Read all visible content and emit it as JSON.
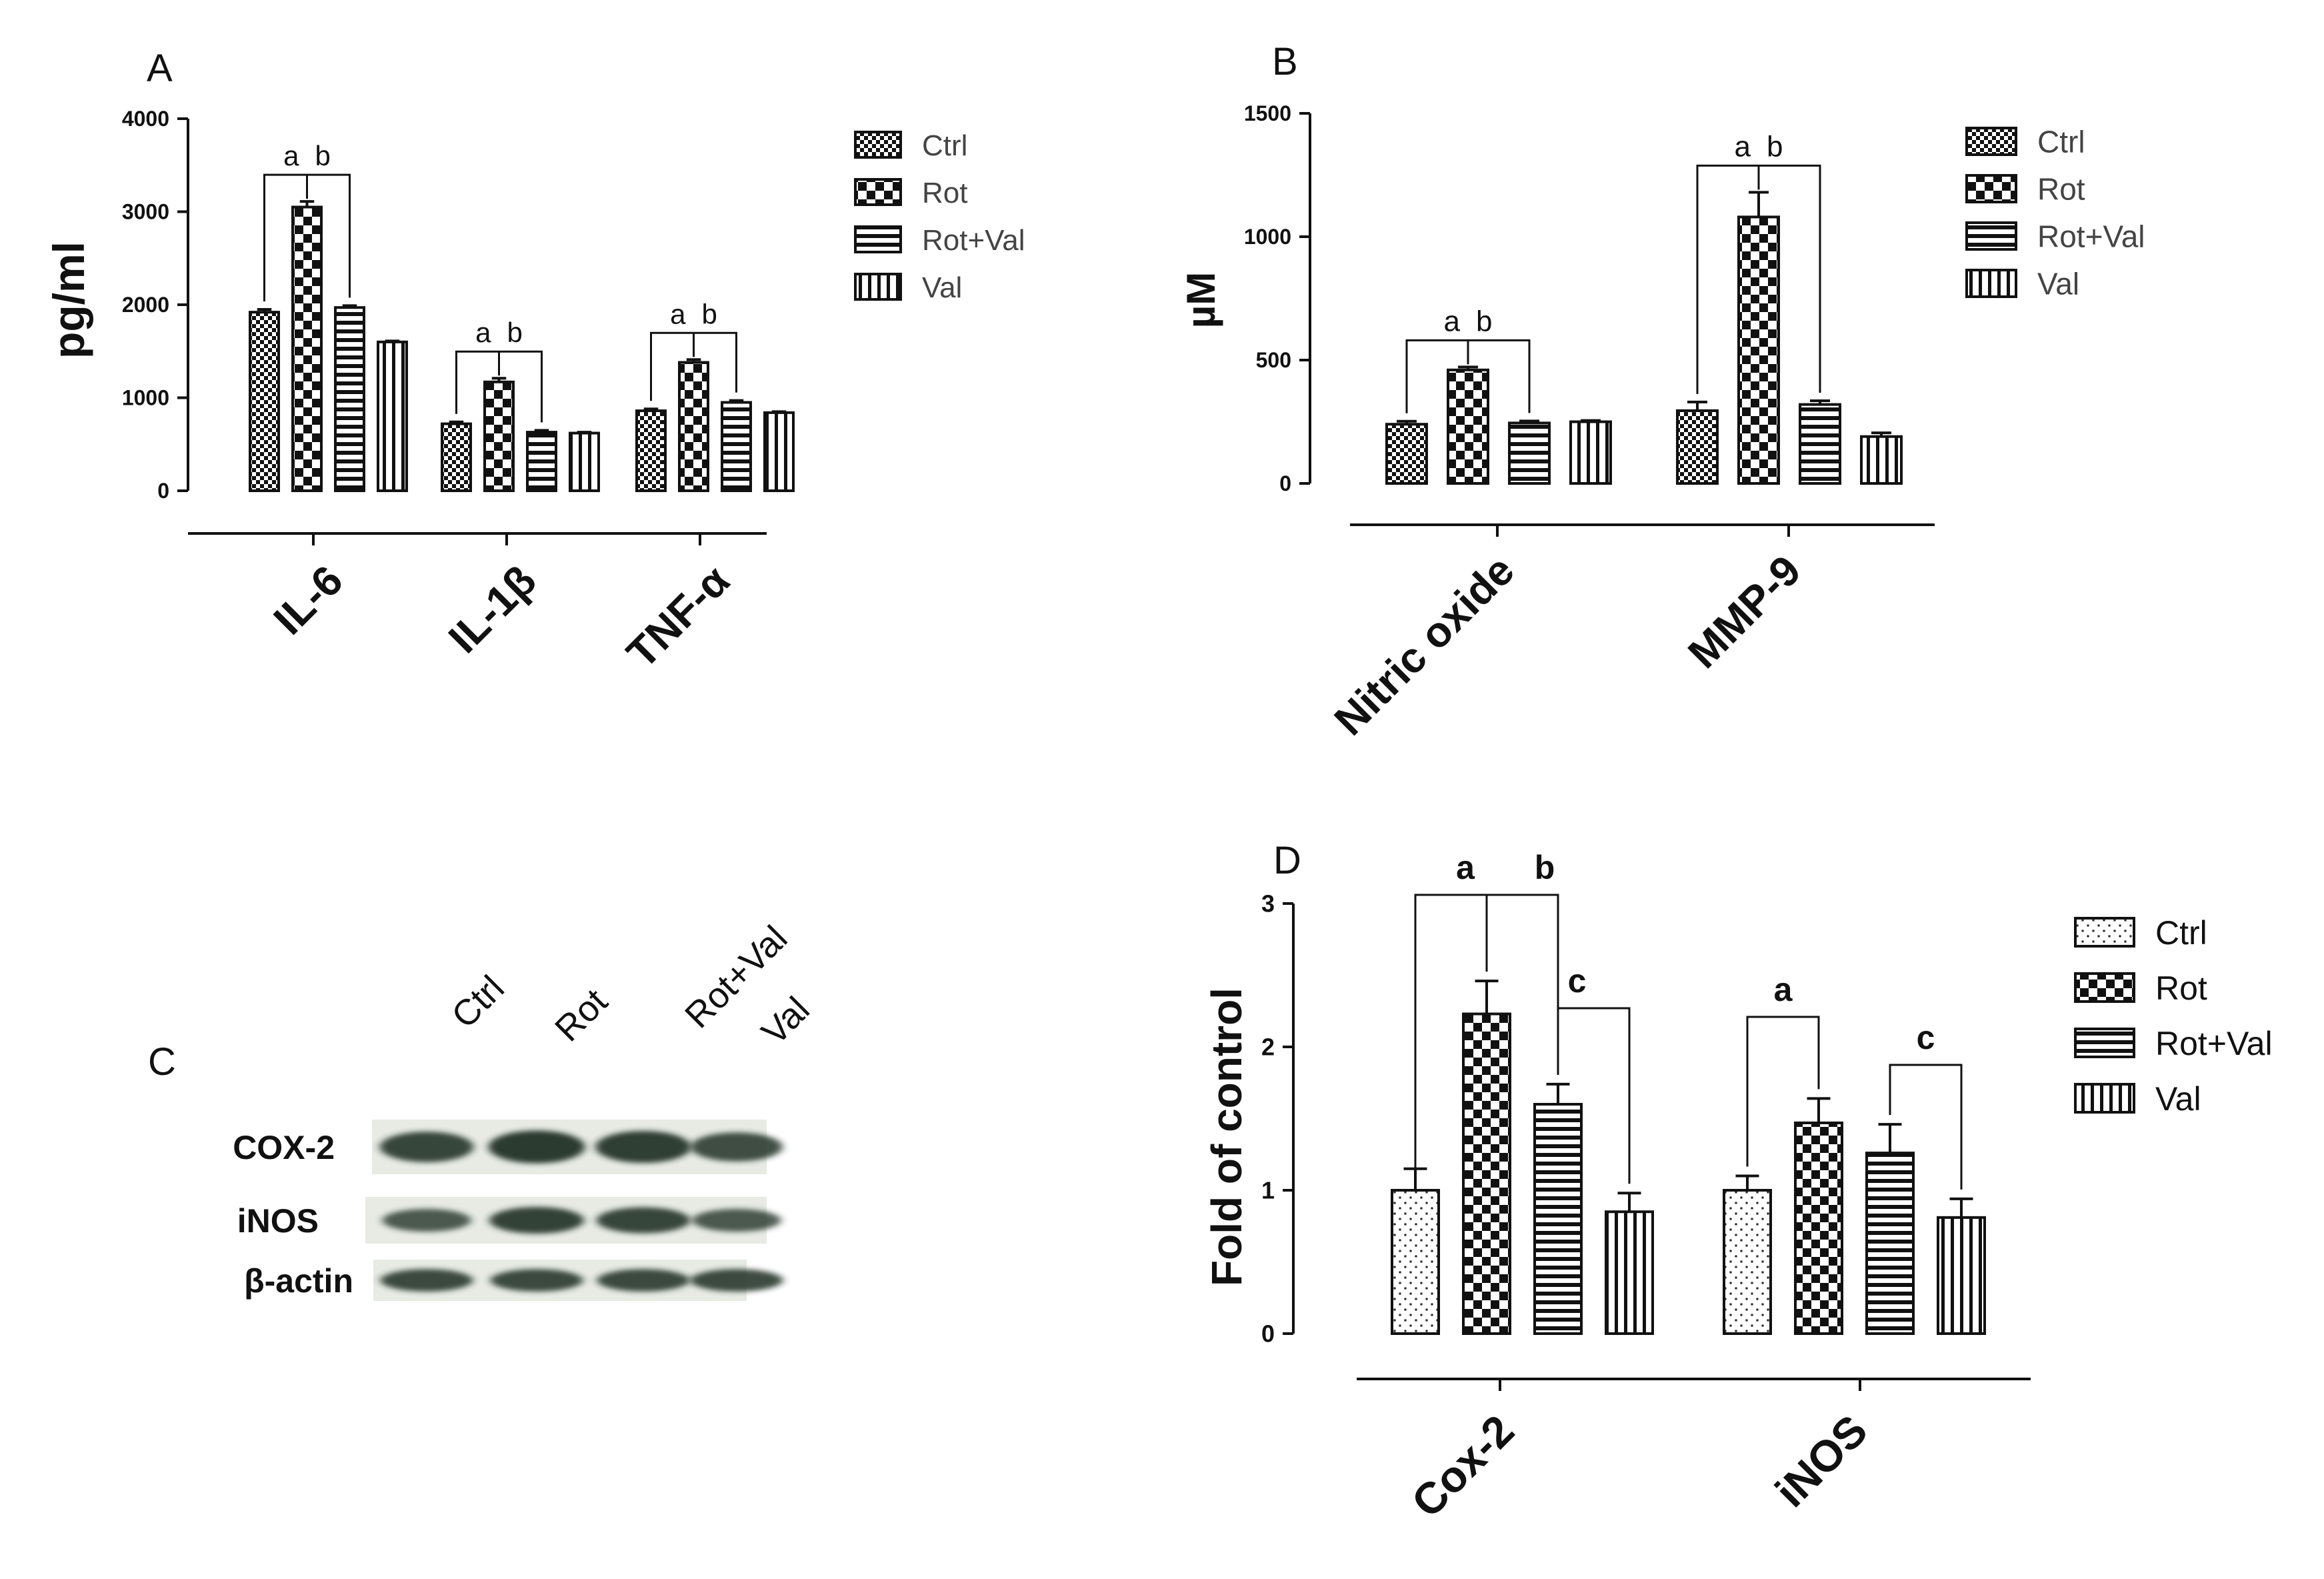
{
  "figure": {
    "panels": [
      "A",
      "B",
      "C",
      "D"
    ]
  },
  "colors": {
    "ink": "#111111",
    "legend_text": "#444444",
    "blot_bg": "#e7ebe4",
    "blot_band": "#243326"
  },
  "chart_data": [
    {
      "id": "A",
      "type": "bar",
      "panel_label": "A",
      "ylabel": "pg/ml",
      "xlabel": "",
      "ylim": [
        0,
        4000
      ],
      "yticks": [
        "0",
        "1000",
        "2000",
        "3000",
        "4000"
      ],
      "categories": [
        "IL-6",
        "IL-1β",
        "TNF-α"
      ],
      "series": [
        {
          "name": "Ctrl",
          "values": [
            1920,
            720,
            860
          ],
          "errors": [
            30,
            20,
            20
          ]
        },
        {
          "name": "Rot",
          "values": [
            3050,
            1170,
            1380
          ],
          "errors": [
            60,
            40,
            30
          ]
        },
        {
          "name": "Rot+Val",
          "values": [
            1970,
            630,
            950
          ],
          "errors": [
            20,
            20,
            20
          ]
        },
        {
          "name": "Val",
          "values": [
            1600,
            620,
            840
          ],
          "errors": [
            10,
            10,
            10
          ]
        }
      ],
      "annotations": [
        {
          "category": "IL-6",
          "labels": [
            "a",
            "b"
          ]
        },
        {
          "category": "IL-1β",
          "labels": [
            "a",
            "b"
          ]
        },
        {
          "category": "TNF-α",
          "labels": [
            "a",
            "b"
          ]
        }
      ],
      "legend": [
        "Ctrl",
        "Rot",
        "Rot+Val",
        "Val"
      ]
    },
    {
      "id": "B",
      "type": "bar",
      "panel_label": "B",
      "ylabel": "µM",
      "xlabel": "",
      "ylim": [
        0,
        1500
      ],
      "yticks": [
        "0",
        "500",
        "1000",
        "1500"
      ],
      "categories": [
        "Nitric oxide",
        "MMP-9"
      ],
      "series": [
        {
          "name": "Ctrl",
          "values": [
            240,
            295
          ],
          "errors": [
            12,
            35
          ]
        },
        {
          "name": "Rot",
          "values": [
            460,
            1080
          ],
          "errors": [
            12,
            100
          ]
        },
        {
          "name": "Rot+Val",
          "values": [
            245,
            320
          ],
          "errors": [
            8,
            15
          ]
        },
        {
          "name": "Val",
          "values": [
            250,
            190
          ],
          "errors": [
            5,
            15
          ]
        }
      ],
      "annotations": [
        {
          "category": "Nitric oxide",
          "labels": [
            "a",
            "b"
          ]
        },
        {
          "category": "MMP-9",
          "labels": [
            "a",
            "b"
          ]
        }
      ],
      "legend": [
        "Ctrl",
        "Rot",
        "Rot+Val",
        "Val"
      ]
    },
    {
      "id": "D",
      "type": "bar",
      "panel_label": "D",
      "ylabel": "Fold of control",
      "xlabel": "",
      "ylim": [
        0,
        3
      ],
      "yticks": [
        "0",
        "1",
        "2",
        "3"
      ],
      "categories": [
        "Cox-2",
        "iNOS"
      ],
      "series": [
        {
          "name": "Ctrl",
          "values": [
            1.0,
            1.0
          ],
          "errors": [
            0.15,
            0.1
          ]
        },
        {
          "name": "Rot",
          "values": [
            2.23,
            1.47
          ],
          "errors": [
            0.23,
            0.17
          ]
        },
        {
          "name": "Rot+Val",
          "values": [
            1.6,
            1.26
          ],
          "errors": [
            0.14,
            0.2
          ]
        },
        {
          "name": "Val",
          "values": [
            0.85,
            0.81
          ],
          "errors": [
            0.13,
            0.13
          ]
        }
      ],
      "annotations": [
        {
          "category": "Cox-2",
          "labels": [
            "a",
            "b",
            "c"
          ]
        },
        {
          "category": "iNOS",
          "labels": [
            "a",
            "c"
          ]
        }
      ],
      "legend": [
        "Ctrl",
        "Rot",
        "Rot+Val",
        "Val"
      ]
    }
  ],
  "blot": {
    "panel_label": "C",
    "lanes": [
      "Ctrl",
      "Rot",
      "Rot+Val",
      "Val"
    ],
    "rows": [
      {
        "name": "COX-2",
        "intensity": [
          0.85,
          1.0,
          0.95,
          0.75
        ]
      },
      {
        "name": "iNOS",
        "intensity": [
          0.6,
          0.9,
          0.85,
          0.6
        ]
      },
      {
        "name": "β-actin",
        "intensity": [
          0.8,
          0.8,
          0.8,
          0.8
        ]
      }
    ]
  }
}
